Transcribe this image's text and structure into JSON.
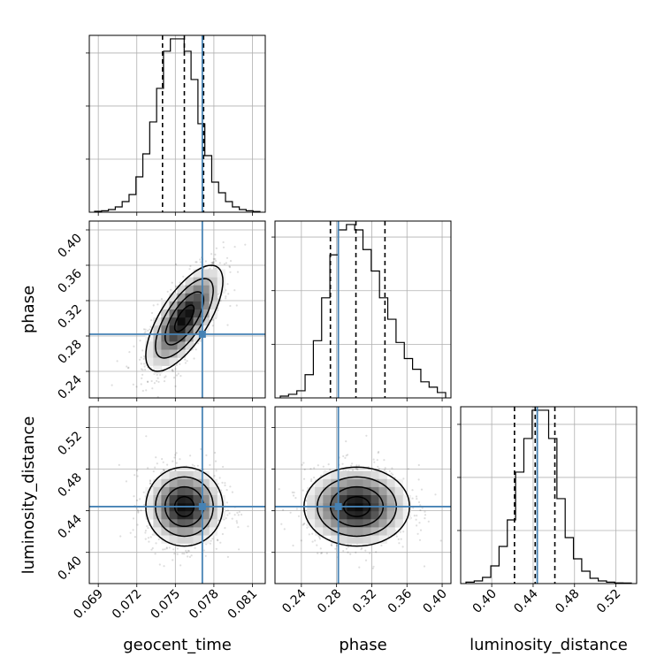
{
  "chart_data": {
    "type": "corner",
    "grid": true,
    "truth_color": "#4682b4",
    "parameters": [
      {
        "name": "geocent_time",
        "range": [
          0.0683,
          0.082
        ],
        "ticks": [
          "0.069",
          "0.072",
          "0.075",
          "0.078",
          "0.081"
        ],
        "tick_values": [
          0.069,
          0.072,
          0.075,
          0.078,
          0.081
        ],
        "truth": 0.0771,
        "quantiles": [
          0.074,
          0.0757,
          0.0772
        ],
        "hist": [
          0.5,
          0.8,
          1.5,
          3,
          6,
          10,
          20,
          33,
          51,
          70,
          91,
          98,
          98,
          91,
          75,
          50,
          32,
          17,
          11,
          6,
          3,
          1.5,
          0.8,
          0.4
        ]
      },
      {
        "name": "phase",
        "range": [
          0.21,
          0.41
        ],
        "ticks": [
          "0.24",
          "0.28",
          "0.32",
          "0.36",
          "0.40"
        ],
        "tick_values": [
          0.24,
          0.28,
          0.32,
          0.36,
          0.4
        ],
        "truth": 0.282,
        "quantiles": [
          0.273,
          0.302,
          0.335
        ],
        "hist": [
          1,
          2,
          4,
          13,
          32,
          56,
          80,
          94,
          97,
          94,
          83,
          71,
          56,
          44,
          31,
          22,
          16,
          9,
          6,
          3
        ]
      },
      {
        "name": "luminosity_distance",
        "range": [
          0.37,
          0.54
        ],
        "ticks": [
          "0.40",
          "0.44",
          "0.48",
          "0.52"
        ],
        "tick_values": [
          0.4,
          0.44,
          0.48,
          0.52
        ],
        "truth": 0.444,
        "quantiles": [
          0.422,
          0.442,
          0.461
        ],
        "hist": [
          0.8,
          1.5,
          3.5,
          10,
          21,
          36,
          63,
          82,
          98,
          98,
          82,
          48,
          26,
          14,
          7,
          3,
          1.5,
          0.8,
          0.4,
          0.3
        ]
      }
    ]
  }
}
